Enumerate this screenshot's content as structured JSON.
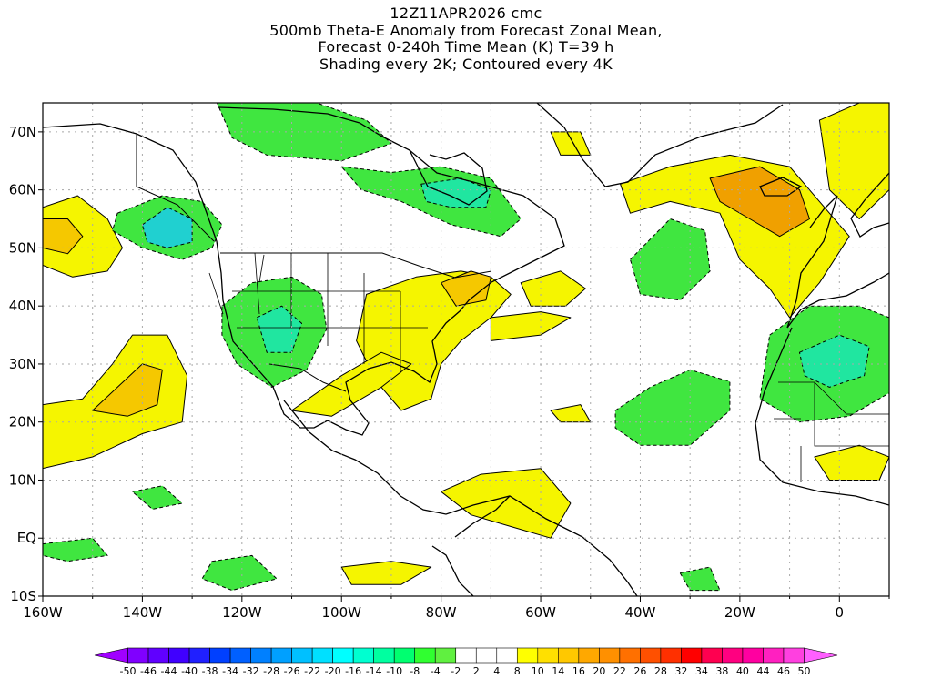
{
  "title": {
    "line1": "12Z11APR2026 cmc",
    "line2": "500mb Theta-E Anomaly from Forecast Zonal Mean,",
    "line3": "Forecast 0-240h Time Mean (K) T=39 h",
    "line4": "Shading every 2K; Contoured every 4K"
  },
  "axes": {
    "x_ticks": [
      "160W",
      "140W",
      "120W",
      "100W",
      "80W",
      "60W",
      "40W",
      "20W",
      "0"
    ],
    "y_ticks": [
      "70N",
      "60N",
      "50N",
      "40N",
      "30N",
      "20N",
      "10N",
      "EQ",
      "10S"
    ],
    "lon_range": [
      -160,
      10
    ],
    "lat_range": [
      -10,
      75
    ],
    "grid": true
  },
  "colorbar": {
    "labels": [
      "-50",
      "-46",
      "-44",
      "-40",
      "-38",
      "-34",
      "-32",
      "-28",
      "-26",
      "-22",
      "-20",
      "-16",
      "-14",
      "-10",
      "-8",
      "-4",
      "-2",
      "2",
      "4",
      "8",
      "10",
      "14",
      "16",
      "20",
      "22",
      "26",
      "28",
      "32",
      "34",
      "38",
      "40",
      "44",
      "46",
      "50"
    ],
    "colors": [
      "#a000ff",
      "#8000ff",
      "#6000ff",
      "#4000ff",
      "#2020ff",
      "#0040ff",
      "#0060ff",
      "#0080ff",
      "#00a0ff",
      "#00c0ff",
      "#00e0ff",
      "#00ffff",
      "#00ffd0",
      "#00ffa0",
      "#00ff70",
      "#30ff30",
      "#60f040",
      "#ffffff",
      "#ffffff",
      "#ffffff",
      "#ffff00",
      "#ffe000",
      "#ffc800",
      "#ffa800",
      "#ff9000",
      "#ff7000",
      "#ff5000",
      "#ff3000",
      "#ff0000",
      "#ff0050",
      "#ff0080",
      "#ff00a0",
      "#ff20c0",
      "#ff40e0",
      "#ff60ff"
    ]
  },
  "colors": {
    "positive_low": "#f5f500",
    "positive_mid": "#f5c800",
    "positive_high": "#f0a000",
    "negative_low": "#40e640",
    "negative_mid": "#20e6a0",
    "negative_high": "#20d0d0"
  },
  "regions": [
    {
      "name": "north-pacific-warm",
      "level": 8,
      "points": [
        [
          -160,
          57
        ],
        [
          -153,
          59
        ],
        [
          -147,
          55
        ],
        [
          -144,
          50
        ],
        [
          -147,
          46
        ],
        [
          -154,
          45
        ],
        [
          -160,
          47
        ]
      ]
    },
    {
      "name": "north-pacific-warm-core",
      "level": 12,
      "points": [
        [
          -160,
          55
        ],
        [
          -155,
          55
        ],
        [
          -152,
          52
        ],
        [
          -155,
          49
        ],
        [
          -160,
          50
        ]
      ]
    },
    {
      "name": "alaska-cold",
      "level": -8,
      "points": [
        [
          -145,
          56
        ],
        [
          -136,
          59
        ],
        [
          -128,
          58
        ],
        [
          -124,
          54
        ],
        [
          -126,
          50
        ],
        [
          -132,
          48
        ],
        [
          -140,
          50
        ],
        [
          -146,
          53
        ]
      ]
    },
    {
      "name": "alaska-cold-core",
      "level": -14,
      "points": [
        [
          -140,
          54
        ],
        [
          -135,
          57
        ],
        [
          -130,
          55
        ],
        [
          -130,
          51
        ],
        [
          -135,
          50
        ],
        [
          -139,
          51
        ]
      ]
    },
    {
      "name": "arctic-canada-cold",
      "level": -8,
      "points": [
        [
          -125,
          75
        ],
        [
          -105,
          75
        ],
        [
          -95,
          72
        ],
        [
          -90,
          68
        ],
        [
          -100,
          65
        ],
        [
          -115,
          66
        ],
        [
          -122,
          69
        ]
      ]
    },
    {
      "name": "hudson-cold",
      "level": -8,
      "points": [
        [
          -100,
          64
        ],
        [
          -90,
          63
        ],
        [
          -80,
          64
        ],
        [
          -70,
          62
        ],
        [
          -64,
          55
        ],
        [
          -68,
          52
        ],
        [
          -78,
          54
        ],
        [
          -88,
          58
        ],
        [
          -96,
          60
        ]
      ]
    },
    {
      "name": "hudson-cold-core",
      "level": -12,
      "points": [
        [
          -84,
          61
        ],
        [
          -76,
          62
        ],
        [
          -70,
          60
        ],
        [
          -71,
          57
        ],
        [
          -78,
          57
        ],
        [
          -83,
          58
        ]
      ]
    },
    {
      "name": "sw-usa-cold",
      "level": -8,
      "points": [
        [
          -124,
          40
        ],
        [
          -118,
          44
        ],
        [
          -110,
          45
        ],
        [
          -104,
          42
        ],
        [
          -103,
          36
        ],
        [
          -107,
          29
        ],
        [
          -114,
          26
        ],
        [
          -121,
          30
        ],
        [
          -124,
          35
        ]
      ]
    },
    {
      "name": "sw-usa-cold-core",
      "level": -12,
      "points": [
        [
          -117,
          38
        ],
        [
          -112,
          40
        ],
        [
          -108,
          37
        ],
        [
          -110,
          32
        ],
        [
          -115,
          32
        ]
      ]
    },
    {
      "name": "subtropical-pacific-warm",
      "level": 8,
      "points": [
        [
          -160,
          23
        ],
        [
          -152,
          24
        ],
        [
          -146,
          30
        ],
        [
          -142,
          35
        ],
        [
          -135,
          35
        ],
        [
          -131,
          28
        ],
        [
          -132,
          20
        ],
        [
          -140,
          18
        ],
        [
          -150,
          14
        ],
        [
          -160,
          12
        ]
      ]
    },
    {
      "name": "subtropical-pacific-warm-core",
      "level": 14,
      "points": [
        [
          -150,
          22
        ],
        [
          -145,
          26
        ],
        [
          -140,
          30
        ],
        [
          -136,
          29
        ],
        [
          -137,
          23
        ],
        [
          -143,
          21
        ]
      ]
    },
    {
      "name": "eastern-usa-warm",
      "level": 8,
      "points": [
        [
          -95,
          42
        ],
        [
          -85,
          45
        ],
        [
          -76,
          46
        ],
        [
          -70,
          45
        ],
        [
          -66,
          42
        ],
        [
          -70,
          38
        ],
        [
          -76,
          34
        ],
        [
          -80,
          30
        ],
        [
          -82,
          24
        ],
        [
          -88,
          22
        ],
        [
          -93,
          27
        ],
        [
          -97,
          34
        ]
      ]
    },
    {
      "name": "northeast-warm-core",
      "level": 14,
      "points": [
        [
          -80,
          44
        ],
        [
          -74,
          46
        ],
        [
          -70,
          45
        ],
        [
          -71,
          41
        ],
        [
          -77,
          40
        ]
      ]
    },
    {
      "name": "gulf-warm-tongue",
      "level": 8,
      "points": [
        [
          -110,
          22
        ],
        [
          -100,
          28
        ],
        [
          -92,
          32
        ],
        [
          -86,
          30
        ],
        [
          -92,
          26
        ],
        [
          -102,
          21
        ]
      ]
    },
    {
      "name": "atlantic-warm-band",
      "level": 8,
      "points": [
        [
          -70,
          38
        ],
        [
          -60,
          39
        ],
        [
          -54,
          38
        ],
        [
          -60,
          35
        ],
        [
          -70,
          34
        ]
      ]
    },
    {
      "name": "mid-atlantic-warm",
      "level": 8,
      "points": [
        [
          -64,
          44
        ],
        [
          -56,
          46
        ],
        [
          -51,
          43
        ],
        [
          -55,
          40
        ],
        [
          -62,
          40
        ]
      ]
    },
    {
      "name": "north-atlantic-cold",
      "level": -8,
      "points": [
        [
          -42,
          48
        ],
        [
          -34,
          55
        ],
        [
          -27,
          53
        ],
        [
          -26,
          46
        ],
        [
          -32,
          41
        ],
        [
          -40,
          42
        ]
      ]
    },
    {
      "name": "greenland-west-warm",
      "level": 8,
      "points": [
        [
          -58,
          70
        ],
        [
          -52,
          70
        ],
        [
          -50,
          66
        ],
        [
          -56,
          66
        ]
      ]
    },
    {
      "name": "iceland-uk-warm",
      "level": 8,
      "points": [
        [
          -44,
          61
        ],
        [
          -34,
          64
        ],
        [
          -22,
          66
        ],
        [
          -10,
          64
        ],
        [
          -4,
          58
        ],
        [
          2,
          52
        ],
        [
          -4,
          44
        ],
        [
          -10,
          38
        ],
        [
          -14,
          43
        ],
        [
          -20,
          48
        ],
        [
          -24,
          56
        ],
        [
          -34,
          58
        ],
        [
          -42,
          56
        ]
      ]
    },
    {
      "name": "iceland-uk-warm-core",
      "level": 16,
      "points": [
        [
          -26,
          62
        ],
        [
          -16,
          64
        ],
        [
          -8,
          60
        ],
        [
          -6,
          55
        ],
        [
          -12,
          52
        ],
        [
          -18,
          55
        ],
        [
          -24,
          58
        ]
      ]
    },
    {
      "name": "scandinavia-warm",
      "level": 8,
      "points": [
        [
          -4,
          72
        ],
        [
          4,
          75
        ],
        [
          10,
          75
        ],
        [
          10,
          60
        ],
        [
          4,
          55
        ],
        [
          -2,
          60
        ]
      ]
    },
    {
      "name": "nw-africa-cold",
      "level": -8,
      "points": [
        [
          -14,
          35
        ],
        [
          -6,
          40
        ],
        [
          4,
          40
        ],
        [
          10,
          38
        ],
        [
          10,
          25
        ],
        [
          2,
          21
        ],
        [
          -8,
          20
        ],
        [
          -16,
          24
        ]
      ]
    },
    {
      "name": "nw-africa-cold-core",
      "level": -12,
      "points": [
        [
          -8,
          32
        ],
        [
          0,
          35
        ],
        [
          6,
          33
        ],
        [
          5,
          28
        ],
        [
          -2,
          26
        ],
        [
          -7,
          28
        ]
      ]
    },
    {
      "name": "central-atlantic-cold",
      "level": -8,
      "points": [
        [
          -45,
          22
        ],
        [
          -38,
          26
        ],
        [
          -30,
          29
        ],
        [
          -22,
          27
        ],
        [
          -22,
          22
        ],
        [
          -30,
          16
        ],
        [
          -40,
          16
        ],
        [
          -45,
          19
        ]
      ]
    },
    {
      "name": "caribbean-warm-band",
      "level": 8,
      "points": [
        [
          -80,
          8
        ],
        [
          -72,
          11
        ],
        [
          -60,
          12
        ],
        [
          -54,
          6
        ],
        [
          -58,
          0
        ],
        [
          -66,
          2
        ],
        [
          -74,
          4
        ]
      ]
    },
    {
      "name": "sw-atlantic-warm",
      "level": 8,
      "points": [
        [
          -58,
          22
        ],
        [
          -52,
          23
        ],
        [
          -50,
          20
        ],
        [
          -56,
          20
        ]
      ]
    },
    {
      "name": "trade-wind-cold-1",
      "level": -8,
      "points": [
        [
          -142,
          8
        ],
        [
          -136,
          9
        ],
        [
          -132,
          6
        ],
        [
          -138,
          5
        ]
      ]
    },
    {
      "name": "trade-wind-cold-2",
      "level": -8,
      "points": [
        [
          -126,
          -4
        ],
        [
          -118,
          -3
        ],
        [
          -113,
          -7
        ],
        [
          -122,
          -9
        ],
        [
          -128,
          -7
        ]
      ]
    },
    {
      "name": "trade-wind-cold-3",
      "level": -8,
      "points": [
        [
          -160,
          -1
        ],
        [
          -150,
          0
        ],
        [
          -147,
          -3
        ],
        [
          -155,
          -4
        ],
        [
          -160,
          -3
        ]
      ]
    },
    {
      "name": "south-pacific-warm",
      "level": 8,
      "points": [
        [
          -100,
          -5
        ],
        [
          -90,
          -4
        ],
        [
          -82,
          -5
        ],
        [
          -88,
          -8
        ],
        [
          -98,
          -8
        ]
      ]
    },
    {
      "name": "west-africa-warm",
      "level": 8,
      "points": [
        [
          -5,
          14
        ],
        [
          4,
          16
        ],
        [
          10,
          14
        ],
        [
          8,
          10
        ],
        [
          -2,
          10
        ]
      ]
    },
    {
      "name": "tropical-atlantic-cold",
      "level": -8,
      "points": [
        [
          -32,
          -6
        ],
        [
          -26,
          -5
        ],
        [
          -24,
          -9
        ],
        [
          -30,
          -9
        ]
      ]
    }
  ]
}
